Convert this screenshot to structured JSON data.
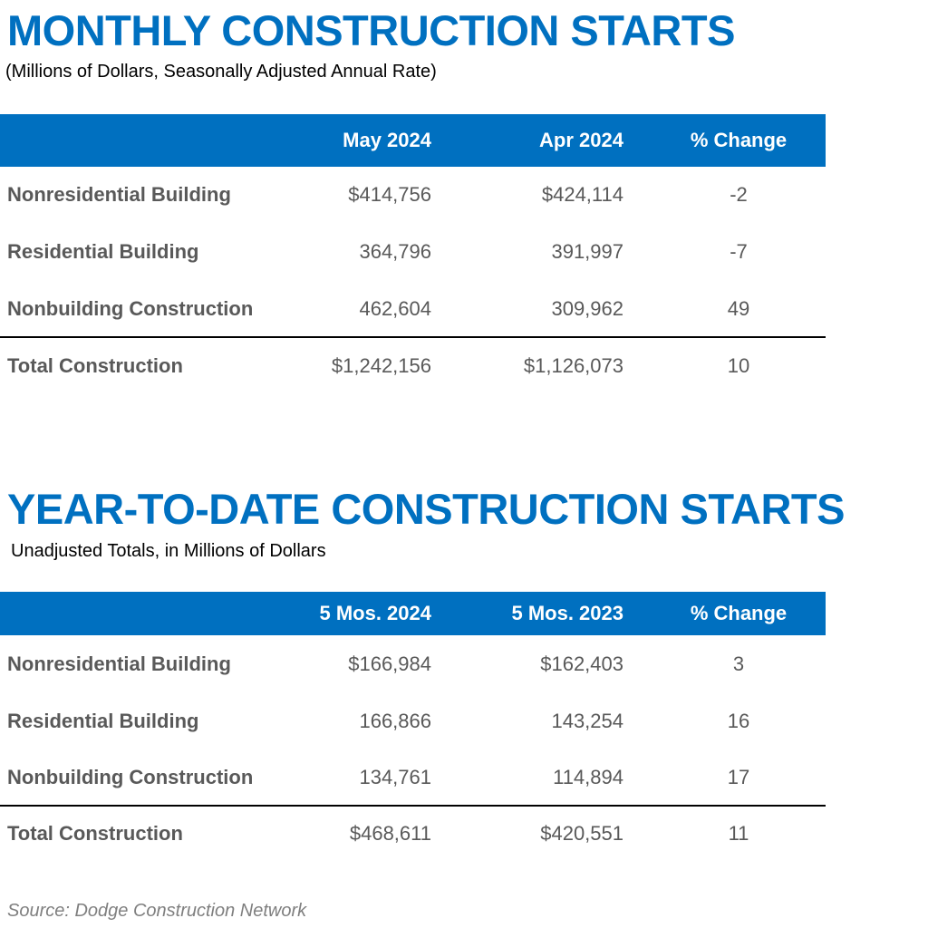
{
  "sections": [
    {
      "title": "MONTHLY CONSTRUCTION STARTS",
      "subtitle": "(Millions of Dollars, Seasonally Adjusted Annual Rate)",
      "columns": [
        "May 2024",
        "Apr 2024",
        "% Change"
      ],
      "rows": [
        {
          "label": "Nonresidential Building",
          "values": [
            "$414,756",
            "$424,114",
            "-2"
          ]
        },
        {
          "label": "Residential Building",
          "values": [
            "364,796",
            "391,997",
            "-7"
          ]
        },
        {
          "label": "Nonbuilding Construction",
          "values": [
            "462,604",
            "309,962",
            "49"
          ]
        },
        {
          "label": "Total Construction",
          "values": [
            "$1,242,156",
            "$1,126,073",
            "10"
          ]
        }
      ]
    },
    {
      "title": "YEAR-TO-DATE CONSTRUCTION STARTS",
      "subtitle": "Unadjusted Totals, in Millions of Dollars",
      "columns": [
        "5 Mos. 2024",
        "5 Mos. 2023",
        "% Change"
      ],
      "rows": [
        {
          "label": "Nonresidential Building",
          "values": [
            "$166,984",
            "$162,403",
            "3"
          ]
        },
        {
          "label": "Residential Building",
          "values": [
            "166,866",
            "143,254",
            "16"
          ]
        },
        {
          "label": "Nonbuilding Construction",
          "values": [
            "134,761",
            "114,894",
            "17"
          ]
        },
        {
          "label": "Total Construction",
          "values": [
            "$468,611",
            "$420,551",
            "11"
          ]
        }
      ]
    }
  ],
  "source": "Source: Dodge Construction Network"
}
